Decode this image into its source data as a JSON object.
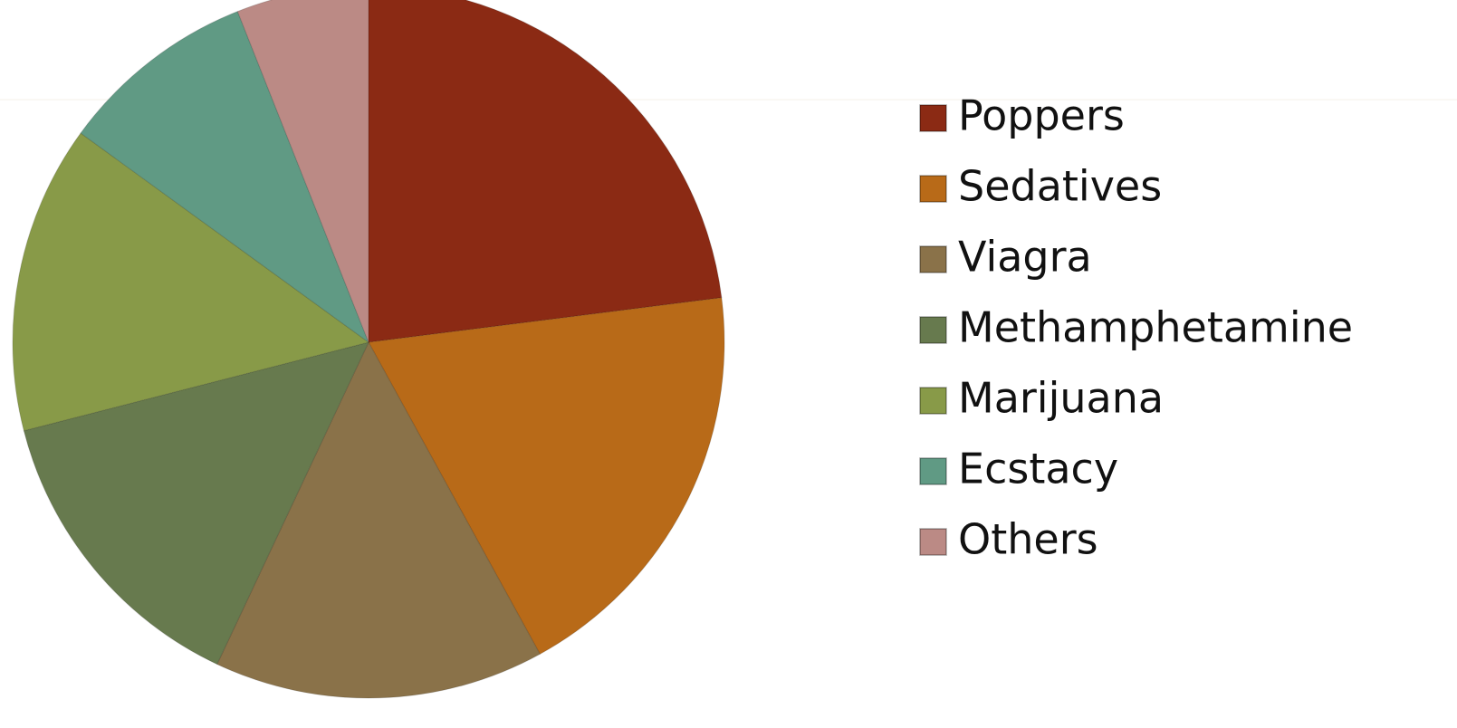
{
  "chart_data": {
    "type": "pie",
    "categories": [
      "Poppers",
      "Sedatives",
      "Viagra",
      "Methamphetamine",
      "Marijuana",
      "Ecstacy",
      "Others"
    ],
    "values": [
      23,
      19,
      15,
      14,
      14,
      9,
      6
    ],
    "colors": [
      "#8b2a14",
      "#b86a18",
      "#8a7249",
      "#677a4e",
      "#889a48",
      "#609a84",
      "#bb8a85"
    ],
    "legend": "right"
  }
}
